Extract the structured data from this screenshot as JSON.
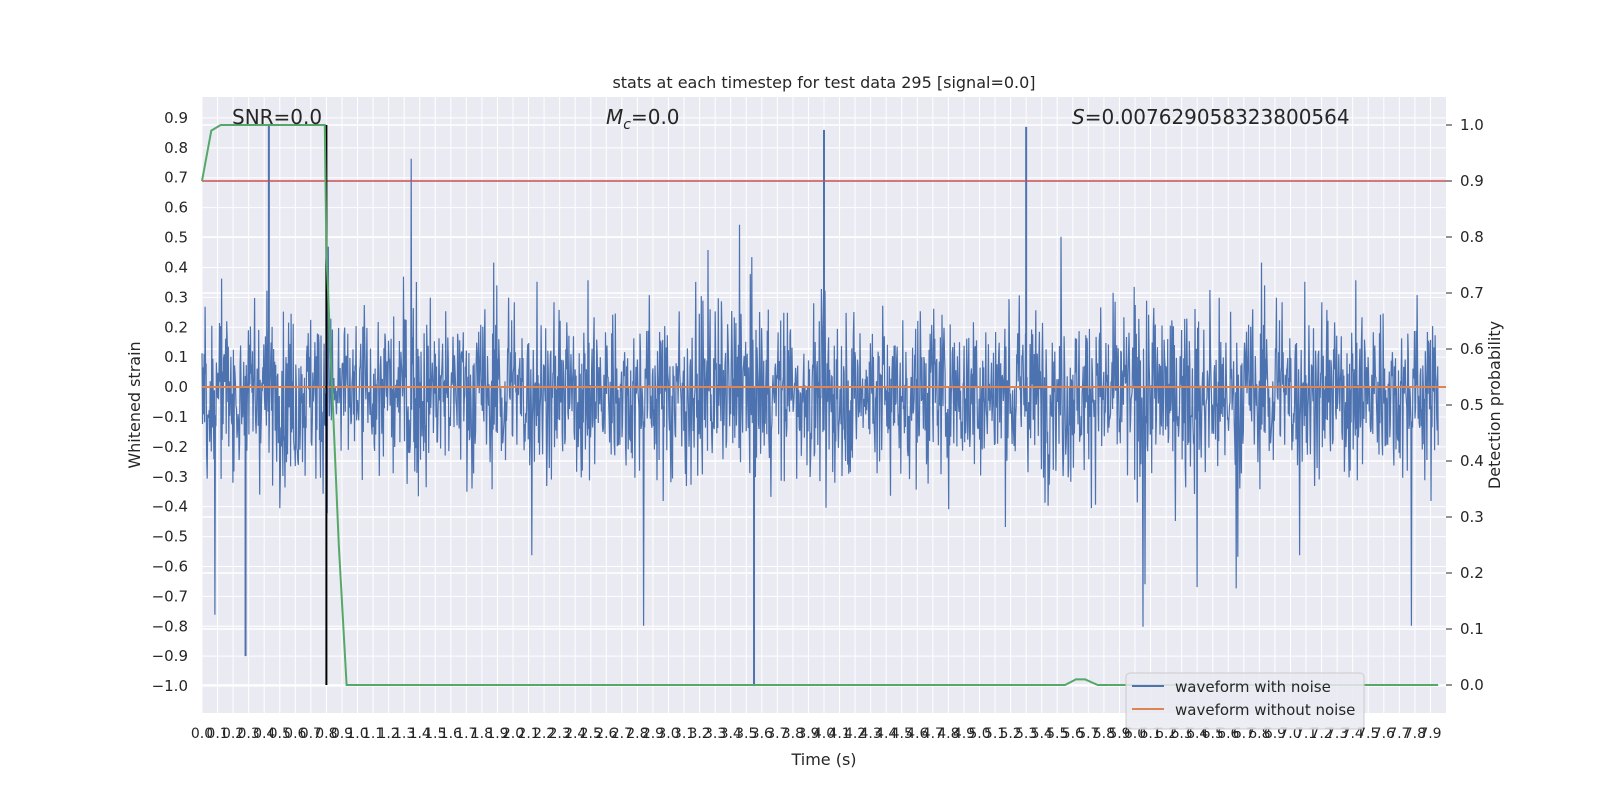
{
  "chart_data": {
    "type": "line",
    "title": "stats at each timestep for test data 295 [signal=0.0]",
    "xlabel": "Time (s)",
    "ylabel_left": "Whitened strain",
    "ylabel_right": "Detection probability",
    "xlim": [
      0.0,
      8.0
    ],
    "ylim_left": [
      -1.09,
      0.97
    ],
    "ylim_right": [
      -0.05,
      1.05
    ],
    "grid": true,
    "legend_position": "lower-right",
    "x_ticks": [
      "0.0",
      "0.1",
      "0.2",
      "0.3",
      "0.4",
      "0.5",
      "0.6",
      "0.7",
      "0.8",
      "0.9",
      "1.0",
      "1.1",
      "1.2",
      "1.3",
      "1.4",
      "1.5",
      "1.6",
      "1.7",
      "1.8",
      "1.9",
      "2.0",
      "2.1",
      "2.2",
      "2.3",
      "2.4",
      "2.5",
      "2.6",
      "2.7",
      "2.8",
      "2.9",
      "3.0",
      "3.1",
      "3.2",
      "3.3",
      "3.4",
      "3.5",
      "3.6",
      "3.7",
      "3.8",
      "3.9",
      "4.0",
      "4.1",
      "4.2",
      "4.3",
      "4.4",
      "4.5",
      "4.6",
      "4.7",
      "4.8",
      "4.9",
      "5.0",
      "5.1",
      "5.2",
      "5.3",
      "5.4",
      "5.5",
      "5.6",
      "5.7",
      "5.8",
      "5.9",
      "6.0",
      "6.1",
      "6.2",
      "6.3",
      "6.4",
      "6.5",
      "6.6",
      "6.7",
      "6.8",
      "6.9",
      "7.0",
      "7.1",
      "7.2",
      "7.3",
      "7.4",
      "7.5",
      "7.6",
      "7.7",
      "7.8",
      "7.9"
    ],
    "y_ticks_left": [
      "0.9",
      "0.8",
      "0.7",
      "0.6",
      "0.5",
      "0.4",
      "0.3",
      "0.2",
      "0.1",
      "0.0",
      "−0.1",
      "−0.2",
      "−0.3",
      "−0.4",
      "−0.5",
      "−0.6",
      "−0.7",
      "−0.8",
      "−0.9",
      "−1.0"
    ],
    "y_ticks_right": [
      "1.0",
      "0.9",
      "0.8",
      "0.7",
      "0.6",
      "0.5",
      "0.4",
      "0.3",
      "0.2",
      "0.1",
      "0.0"
    ],
    "annotations": {
      "snr": "SNR=0.0",
      "mc_symbol": "M",
      "mc_sub": "c",
      "mc_value": "=0.0",
      "s_symbol": "S",
      "s_value": "=0.007629058323800564"
    },
    "series": [
      {
        "name": "waveform with noise",
        "color": "#4c72b0",
        "note": "dense noise, range approx -1.0 to 0.9"
      },
      {
        "name": "waveform without noise",
        "color": "#dd8452",
        "values_constant": 0.0
      }
    ],
    "threshold_right": 0.9,
    "threshold_color": "#c44e52",
    "marker_time": 0.8,
    "detection_probability": {
      "color": "#55a868",
      "x": [
        0.0,
        0.06,
        0.12,
        0.2,
        0.5,
        0.79,
        0.8,
        0.88,
        0.93,
        1.0,
        5.55,
        5.62,
        5.68,
        5.76,
        7.95
      ],
      "y": [
        0.9,
        0.99,
        1.0,
        1.0,
        1.0,
        1.0,
        0.77,
        0.25,
        0.0,
        0.0,
        0.0,
        0.01,
        0.01,
        0.0,
        0.0
      ]
    }
  }
}
